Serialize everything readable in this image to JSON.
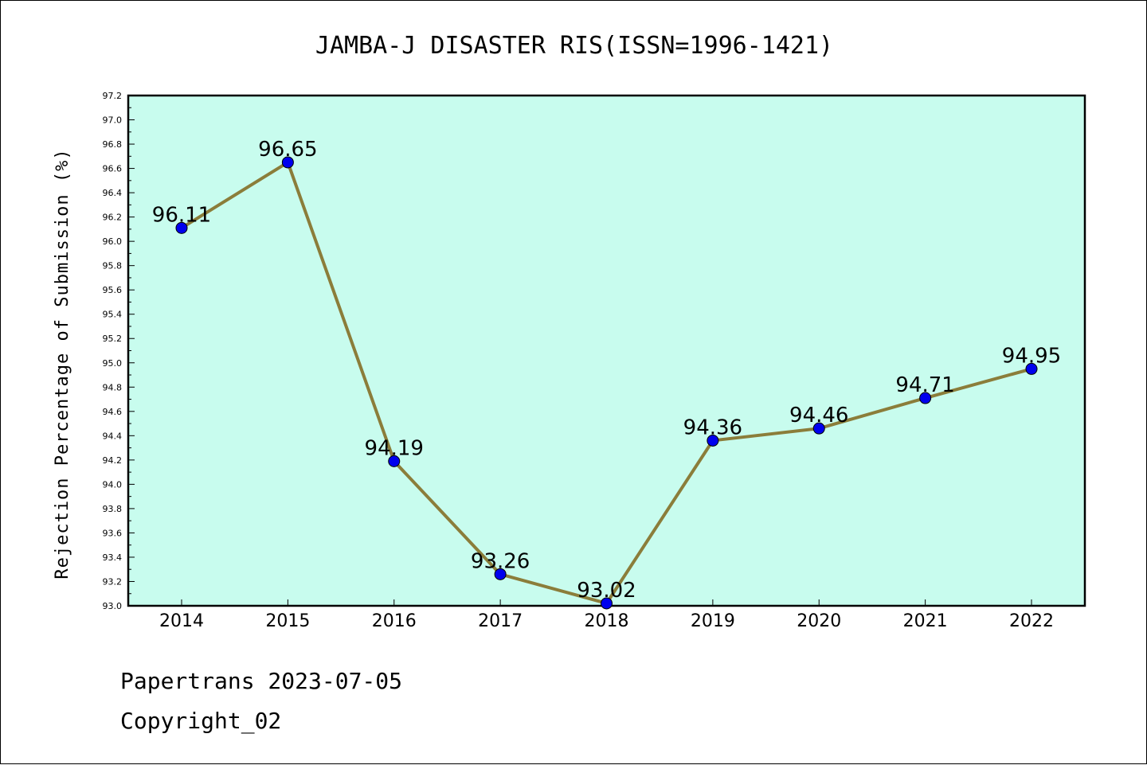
{
  "chart_data": {
    "type": "line",
    "title": "JAMBA-J DISASTER RIS(ISSN=1996-1421)",
    "xlabel": "",
    "ylabel": "Rejection Percentage of Submission (%)",
    "x": [
      "2014",
      "2015",
      "2016",
      "2017",
      "2018",
      "2019",
      "2020",
      "2021",
      "2022"
    ],
    "series": [
      {
        "values": [
          96.11,
          96.65,
          94.19,
          93.26,
          93.02,
          94.36,
          94.46,
          94.71,
          94.95
        ],
        "labels": [
          "96.11",
          "96.65",
          "94.19",
          "93.26",
          "93.02",
          "94.36",
          "94.46",
          "94.71",
          "94.95"
        ]
      }
    ],
    "ylim": [
      93.0,
      97.2
    ],
    "yticks": [
      "93.0",
      "93.2",
      "93.4",
      "93.6",
      "93.8",
      "94.0",
      "94.2",
      "94.4",
      "94.6",
      "94.8",
      "95.0",
      "95.2",
      "95.4",
      "95.6",
      "95.8",
      "96.0",
      "96.2",
      "96.4",
      "96.6",
      "96.8",
      "97.0",
      "97.2"
    ],
    "colors": {
      "plot_background": "#c8fcee",
      "line": "#8b7d3a",
      "marker": "#0000ee"
    },
    "grid": false,
    "legend": "none"
  },
  "footer": {
    "line1": "Papertrans 2023-07-05",
    "line2": "Copyright_02"
  }
}
